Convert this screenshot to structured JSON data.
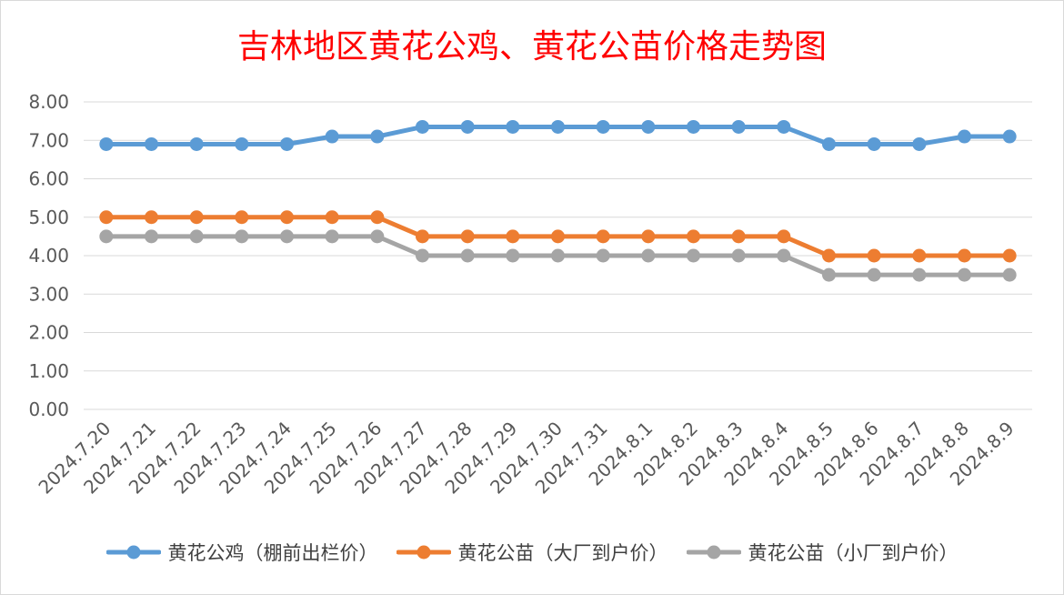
{
  "chart_data": {
    "type": "line",
    "title": "吉林地区黄花公鸡、黄花公苗价格走势图",
    "xlabel": "",
    "ylabel": "",
    "ylim": [
      0,
      8
    ],
    "yticks": [
      "0.00",
      "1.00",
      "2.00",
      "3.00",
      "4.00",
      "5.00",
      "6.00",
      "7.00",
      "8.00"
    ],
    "grid": true,
    "legend_position": "bottom",
    "categories": [
      "2024.7.20",
      "2024.7.21",
      "2024.7.22",
      "2024.7.23",
      "2024.7.24",
      "2024.7.25",
      "2024.7.26",
      "2024.7.27",
      "2024.7.28",
      "2024.7.29",
      "2024.7.30",
      "2024.7.31",
      "2024.8.1",
      "2024.8.2",
      "2024.8.3",
      "2024.8.4",
      "2024.8.5",
      "2024.8.6",
      "2024.8.7",
      "2024.8.8",
      "2024.8.9"
    ],
    "series": [
      {
        "name": "黄花公鸡（棚前出栏价）",
        "color": "#5b9bd5",
        "values": [
          6.9,
          6.9,
          6.9,
          6.9,
          6.9,
          7.1,
          7.1,
          7.35,
          7.35,
          7.35,
          7.35,
          7.35,
          7.35,
          7.35,
          7.35,
          7.35,
          6.9,
          6.9,
          6.9,
          7.1,
          7.1
        ]
      },
      {
        "name": "黄花公苗（大厂到户价）",
        "color": "#ed7d31",
        "values": [
          5.0,
          5.0,
          5.0,
          5.0,
          5.0,
          5.0,
          5.0,
          4.5,
          4.5,
          4.5,
          4.5,
          4.5,
          4.5,
          4.5,
          4.5,
          4.5,
          4.0,
          4.0,
          4.0,
          4.0,
          4.0
        ]
      },
      {
        "name": "黄花公苗（小厂到户价）",
        "color": "#a5a5a5",
        "values": [
          4.5,
          4.5,
          4.5,
          4.5,
          4.5,
          4.5,
          4.5,
          4.0,
          4.0,
          4.0,
          4.0,
          4.0,
          4.0,
          4.0,
          4.0,
          4.0,
          3.5,
          3.5,
          3.5,
          3.5,
          3.5
        ]
      }
    ]
  }
}
